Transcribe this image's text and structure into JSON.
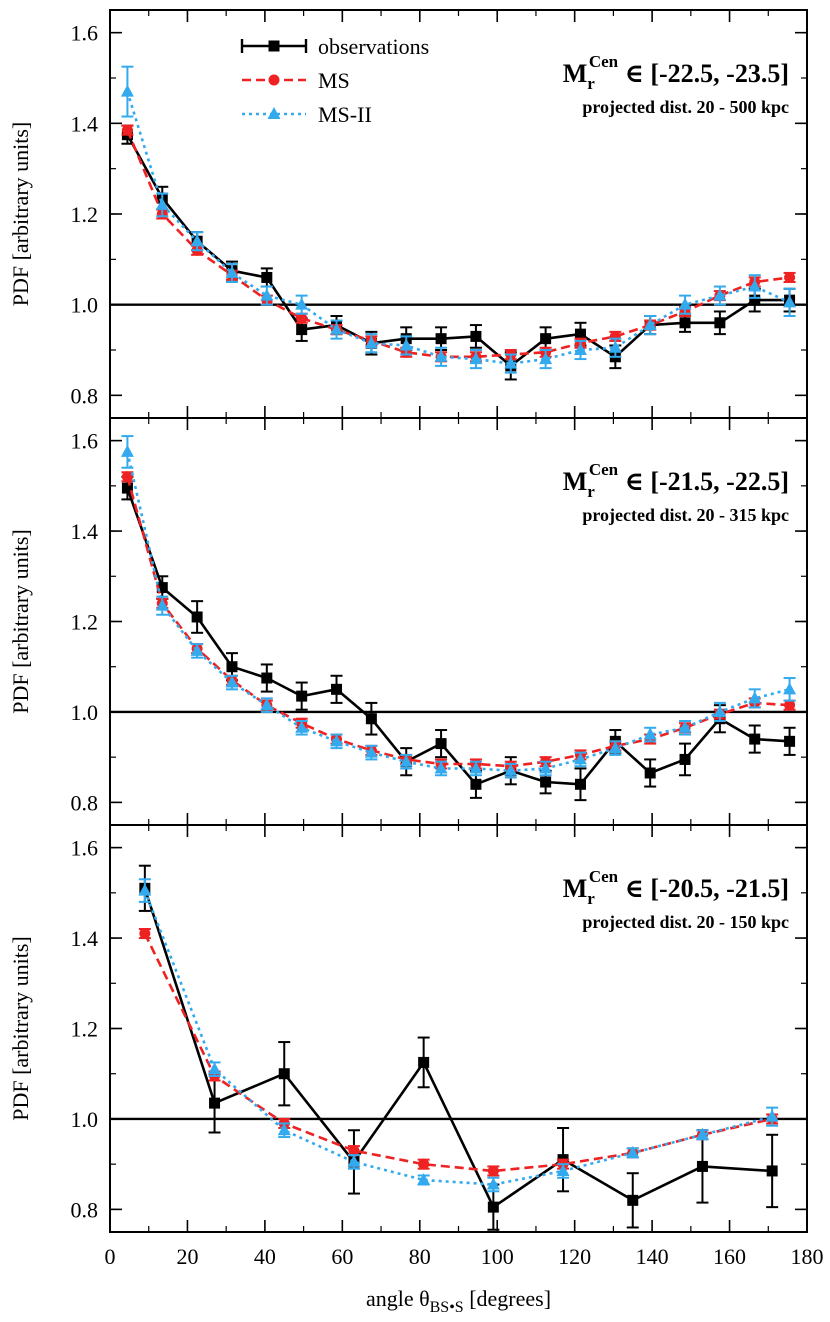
{
  "xlabel": "angle θ",
  "xlabel_sub": "BS•S",
  "xlabel_unit": " [degrees]",
  "legend": {
    "observations": "observations",
    "ms": "MS",
    "ms2": "MS-II"
  },
  "colors": {
    "observations": "#000000",
    "ms": "#ee2222",
    "ms2": "#33aaee",
    "axis": "#000000"
  },
  "chart_data": [
    {
      "type": "line",
      "ylabel": "PDF  [arbitrary units]",
      "xlim": [
        0,
        180
      ],
      "ylim": [
        0.75,
        1.65
      ],
      "reference_line": 1.0,
      "xticks": [
        0,
        20,
        40,
        60,
        80,
        100,
        120,
        140,
        160,
        180
      ],
      "yticks": [
        0.8,
        1.0,
        1.2,
        1.4,
        1.6
      ],
      "annotation": {
        "m": "M",
        "sub": "r",
        "sup": "Cen",
        "range": " ∈ [-22.5, -23.5]",
        "line2": "projected dist. 20 - 500 kpc"
      },
      "series": [
        {
          "name": "observations",
          "x": [
            4.5,
            13.5,
            22.5,
            31.5,
            40.5,
            49.5,
            58.5,
            67.5,
            76.5,
            85.5,
            94.5,
            103.5,
            112.5,
            121.5,
            130.5,
            139.5,
            148.5,
            157.5,
            166.5,
            175.5
          ],
          "y": [
            1.375,
            1.235,
            1.14,
            1.075,
            1.06,
            0.945,
            0.955,
            0.915,
            0.925,
            0.925,
            0.93,
            0.865,
            0.925,
            0.935,
            0.885,
            0.955,
            0.96,
            0.96,
            1.01,
            1.01
          ],
          "err": [
            0.02,
            0.025,
            0.02,
            0.02,
            0.02,
            0.025,
            0.02,
            0.025,
            0.025,
            0.025,
            0.025,
            0.03,
            0.025,
            0.025,
            0.025,
            0.02,
            0.02,
            0.025,
            0.025,
            0.025
          ]
        },
        {
          "name": "MS",
          "x": [
            4.5,
            13.5,
            22.5,
            31.5,
            40.5,
            49.5,
            58.5,
            67.5,
            76.5,
            85.5,
            94.5,
            103.5,
            112.5,
            121.5,
            130.5,
            139.5,
            148.5,
            157.5,
            166.5,
            175.5
          ],
          "y": [
            1.385,
            1.2,
            1.12,
            1.065,
            1.01,
            0.97,
            0.945,
            0.92,
            0.895,
            0.885,
            0.885,
            0.89,
            0.895,
            0.915,
            0.93,
            0.955,
            0.985,
            1.02,
            1.05,
            1.06
          ],
          "err": [
            0.01,
            0.01,
            0.01,
            0.01,
            0.01,
            0.01,
            0.01,
            0.01,
            0.01,
            0.01,
            0.01,
            0.01,
            0.01,
            0.01,
            0.01,
            0.01,
            0.01,
            0.01,
            0.01,
            0.01
          ]
        },
        {
          "name": "MS-II",
          "x": [
            4.5,
            13.5,
            22.5,
            31.5,
            40.5,
            49.5,
            58.5,
            67.5,
            76.5,
            85.5,
            94.5,
            103.5,
            112.5,
            121.5,
            130.5,
            139.5,
            148.5,
            157.5,
            166.5,
            175.5
          ],
          "y": [
            1.47,
            1.22,
            1.14,
            1.07,
            1.02,
            1.0,
            0.945,
            0.915,
            0.91,
            0.885,
            0.88,
            0.87,
            0.88,
            0.9,
            0.905,
            0.955,
            1.0,
            1.02,
            1.04,
            1.005
          ],
          "err": [
            0.055,
            0.025,
            0.02,
            0.02,
            0.02,
            0.02,
            0.02,
            0.02,
            0.02,
            0.02,
            0.02,
            0.02,
            0.02,
            0.02,
            0.02,
            0.02,
            0.02,
            0.02,
            0.025,
            0.03
          ]
        }
      ]
    },
    {
      "type": "line",
      "ylabel": "PDF  [arbitrary units]",
      "xlim": [
        0,
        180
      ],
      "ylim": [
        0.75,
        1.65
      ],
      "reference_line": 1.0,
      "xticks": [
        0,
        20,
        40,
        60,
        80,
        100,
        120,
        140,
        160,
        180
      ],
      "yticks": [
        0.8,
        1.0,
        1.2,
        1.4,
        1.6
      ],
      "annotation": {
        "m": "M",
        "sub": "r",
        "sup": "Cen",
        "range": " ∈ [-21.5, -22.5]",
        "line2": "projected dist. 20 - 315 kpc"
      },
      "series": [
        {
          "name": "observations",
          "x": [
            4.5,
            13.5,
            22.5,
            31.5,
            40.5,
            49.5,
            58.5,
            67.5,
            76.5,
            85.5,
            94.5,
            103.5,
            112.5,
            121.5,
            130.5,
            139.5,
            148.5,
            157.5,
            166.5,
            175.5
          ],
          "y": [
            1.495,
            1.275,
            1.21,
            1.1,
            1.075,
            1.035,
            1.05,
            0.985,
            0.89,
            0.93,
            0.84,
            0.87,
            0.845,
            0.84,
            0.935,
            0.865,
            0.895,
            0.985,
            0.94,
            0.935
          ],
          "err": [
            0.025,
            0.025,
            0.035,
            0.03,
            0.03,
            0.03,
            0.03,
            0.035,
            0.03,
            0.03,
            0.03,
            0.03,
            0.025,
            0.035,
            0.025,
            0.03,
            0.035,
            0.03,
            0.03,
            0.03
          ]
        },
        {
          "name": "MS",
          "x": [
            4.5,
            13.5,
            22.5,
            31.5,
            40.5,
            49.5,
            58.5,
            67.5,
            76.5,
            85.5,
            94.5,
            103.5,
            112.5,
            121.5,
            130.5,
            139.5,
            148.5,
            157.5,
            166.5,
            175.5
          ],
          "y": [
            1.52,
            1.24,
            1.14,
            1.07,
            1.015,
            0.975,
            0.94,
            0.915,
            0.895,
            0.885,
            0.885,
            0.88,
            0.89,
            0.905,
            0.925,
            0.94,
            0.965,
            0.995,
            1.02,
            1.015
          ],
          "err": [
            0.01,
            0.01,
            0.01,
            0.01,
            0.01,
            0.01,
            0.01,
            0.01,
            0.01,
            0.01,
            0.01,
            0.01,
            0.01,
            0.01,
            0.01,
            0.01,
            0.01,
            0.01,
            0.01,
            0.01
          ]
        },
        {
          "name": "MS-II",
          "x": [
            4.5,
            13.5,
            22.5,
            31.5,
            40.5,
            49.5,
            58.5,
            67.5,
            76.5,
            85.5,
            94.5,
            103.5,
            112.5,
            121.5,
            130.5,
            139.5,
            148.5,
            157.5,
            166.5,
            175.5
          ],
          "y": [
            1.575,
            1.235,
            1.135,
            1.065,
            1.015,
            0.965,
            0.935,
            0.91,
            0.89,
            0.875,
            0.875,
            0.87,
            0.875,
            0.895,
            0.92,
            0.95,
            0.965,
            1.0,
            1.03,
            1.05
          ],
          "err": [
            0.035,
            0.02,
            0.015,
            0.015,
            0.015,
            0.015,
            0.015,
            0.015,
            0.015,
            0.015,
            0.015,
            0.015,
            0.015,
            0.015,
            0.015,
            0.015,
            0.015,
            0.02,
            0.02,
            0.025
          ]
        }
      ]
    },
    {
      "type": "line",
      "ylabel": "PDF  [arbitrary units]",
      "xlabel": "angle θBS•S [degrees]",
      "xlim": [
        0,
        180
      ],
      "ylim": [
        0.75,
        1.65
      ],
      "reference_line": 1.0,
      "xticks": [
        0,
        20,
        40,
        60,
        80,
        100,
        120,
        140,
        160,
        180
      ],
      "yticks": [
        0.8,
        1.0,
        1.2,
        1.4,
        1.6
      ],
      "annotation": {
        "m": "M",
        "sub": "r",
        "sup": "Cen",
        "range": " ∈ [-20.5, -21.5]",
        "line2": "projected dist. 20 - 150 kpc"
      },
      "series": [
        {
          "name": "observations",
          "x": [
            9,
            27,
            45,
            63,
            81,
            99,
            117,
            135,
            153,
            171
          ],
          "y": [
            1.51,
            1.035,
            1.1,
            0.905,
            1.125,
            0.805,
            0.91,
            0.82,
            0.895,
            0.885
          ],
          "err": [
            0.05,
            0.065,
            0.07,
            0.07,
            0.055,
            0.05,
            0.07,
            0.06,
            0.08,
            0.08
          ]
        },
        {
          "name": "MS",
          "x": [
            9,
            27,
            45,
            63,
            81,
            99,
            117,
            135,
            153,
            171
          ],
          "y": [
            1.41,
            1.095,
            0.99,
            0.93,
            0.9,
            0.885,
            0.9,
            0.925,
            0.965,
            1.0
          ],
          "err": [
            0.01,
            0.01,
            0.01,
            0.01,
            0.01,
            0.01,
            0.01,
            0.01,
            0.01,
            0.01
          ]
        },
        {
          "name": "MS-II",
          "x": [
            9,
            27,
            45,
            63,
            81,
            99,
            117,
            135,
            153,
            171
          ],
          "y": [
            1.505,
            1.11,
            0.975,
            0.905,
            0.865,
            0.855,
            0.885,
            0.925,
            0.965,
            1.005
          ],
          "err": [
            0.025,
            0.015,
            0.015,
            0.015,
            0.01,
            0.015,
            0.015,
            0.01,
            0.01,
            0.02
          ]
        }
      ]
    }
  ]
}
